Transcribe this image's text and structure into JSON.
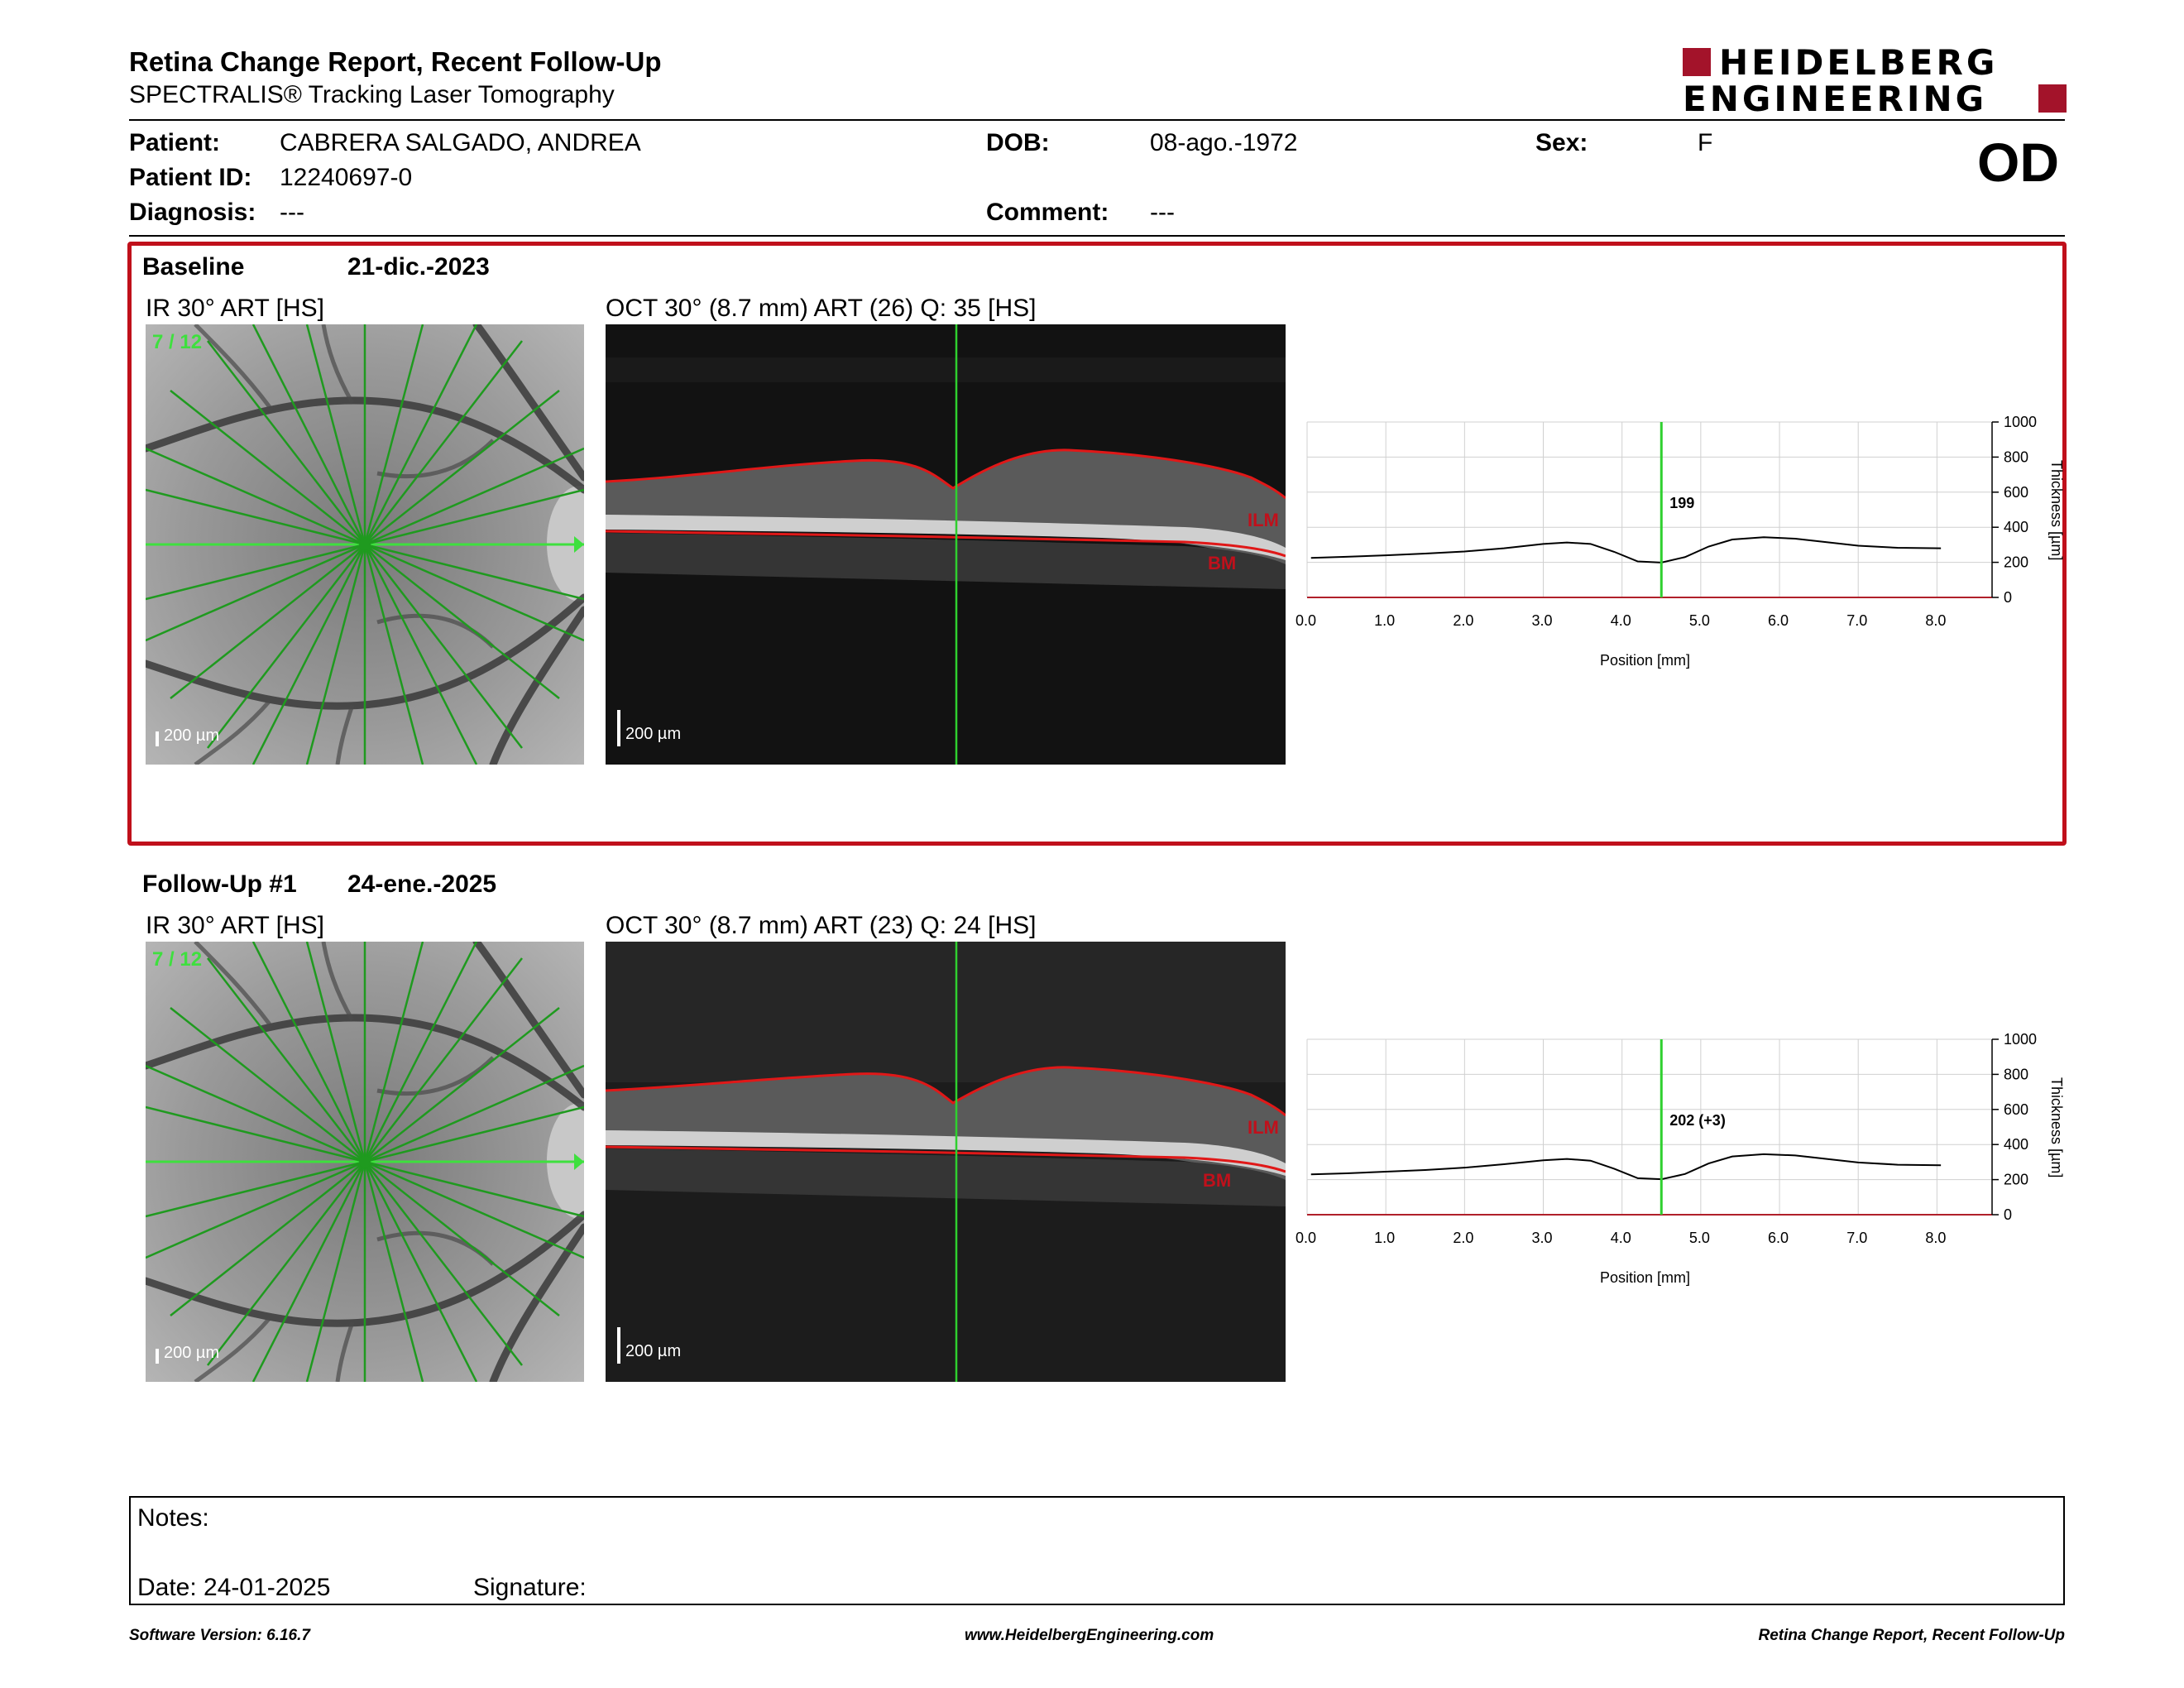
{
  "header": {
    "title": "Retina Change Report, Recent Follow-Up",
    "subtitle": "SPECTRALIS® Tracking Laser Tomography",
    "logo_line1": "HEIDELBERG",
    "logo_line2": "ENGINEERING",
    "eye": "OD"
  },
  "patient": {
    "patient_label": "Patient:",
    "patient_value": "CABRERA SALGADO, ANDREA",
    "id_label": "Patient ID:",
    "id_value": "12240697-0",
    "diagnosis_label": "Diagnosis:",
    "diagnosis_value": "---",
    "dob_label": "DOB:",
    "dob_value": "08-ago.-1972",
    "comment_label": "Comment:",
    "comment_value": "---",
    "sex_label": "Sex:",
    "sex_value": "F"
  },
  "baseline": {
    "label": "Baseline",
    "date": "21-dic.-2023",
    "ir_title": "IR 30° ART [HS]",
    "oct_title": "OCT 30° (8.7 mm) ART (26) Q: 35 [HS]",
    "scan_index": "7 / 12",
    "scale_label": "200 µm",
    "ilm": "ILM",
    "bm": "BM",
    "marker_value": "199"
  },
  "followup": {
    "label": "Follow-Up #1",
    "date": "24-ene.-2025",
    "ir_title": "IR 30° ART [HS]",
    "oct_title": "OCT 30° (8.7 mm) ART (23) Q: 24 [HS]",
    "scan_index": "7 / 12",
    "scale_label": "200 µm",
    "ilm": "ILM",
    "bm": "BM",
    "marker_value": "202 (+3)"
  },
  "chart_data": [
    {
      "type": "line",
      "name": "baseline-thickness",
      "xlabel": "Position [mm]",
      "ylabel": "Thickness [µm]",
      "xlim": [
        0,
        8.7
      ],
      "ylim": [
        0,
        1000
      ],
      "x_ticks": [
        "0.0",
        "1.0",
        "2.0",
        "3.0",
        "4.0",
        "5.0",
        "6.0",
        "7.0",
        "8.0"
      ],
      "y_ticks": [
        "0",
        "200",
        "400",
        "600",
        "800",
        "1000"
      ],
      "marker_x": 4.5,
      "marker_label": "199",
      "x": [
        0.05,
        0.5,
        1.0,
        1.5,
        2.0,
        2.5,
        3.0,
        3.3,
        3.6,
        3.9,
        4.2,
        4.5,
        4.8,
        5.1,
        5.4,
        5.8,
        6.2,
        6.6,
        7.0,
        7.5,
        8.05
      ],
      "y": [
        225,
        232,
        240,
        250,
        262,
        280,
        305,
        313,
        305,
        260,
        205,
        199,
        230,
        290,
        330,
        343,
        335,
        315,
        295,
        283,
        280
      ]
    },
    {
      "type": "line",
      "name": "followup-thickness",
      "xlabel": "Position [mm]",
      "ylabel": "Thickness [µm]",
      "xlim": [
        0,
        8.7
      ],
      "ylim": [
        0,
        1000
      ],
      "x_ticks": [
        "0.0",
        "1.0",
        "2.0",
        "3.0",
        "4.0",
        "5.0",
        "6.0",
        "7.0",
        "8.0"
      ],
      "y_ticks": [
        "0",
        "200",
        "400",
        "600",
        "800",
        "1000"
      ],
      "marker_x": 4.5,
      "marker_label": "202 (+3)",
      "x": [
        0.05,
        0.5,
        1.0,
        1.5,
        2.0,
        2.5,
        3.0,
        3.3,
        3.6,
        3.9,
        4.2,
        4.5,
        4.8,
        5.1,
        5.4,
        5.8,
        6.2,
        6.6,
        7.0,
        7.5,
        8.05
      ],
      "y": [
        230,
        236,
        245,
        255,
        268,
        288,
        310,
        318,
        308,
        262,
        208,
        202,
        232,
        292,
        332,
        345,
        338,
        318,
        298,
        285,
        282
      ]
    }
  ],
  "notes": {
    "notes_label": "Notes:",
    "date_label": "Date: 24-01-2025",
    "signature_label": "Signature:"
  },
  "footer": {
    "software": "Software Version: 6.16.7",
    "website": "www.HeidelbergEngineering.com",
    "report": "Retina Change Report, Recent Follow-Up"
  },
  "colors": {
    "accent": "#c0101b",
    "scan_line": "#2fd02f",
    "logo": "#a3132a"
  }
}
